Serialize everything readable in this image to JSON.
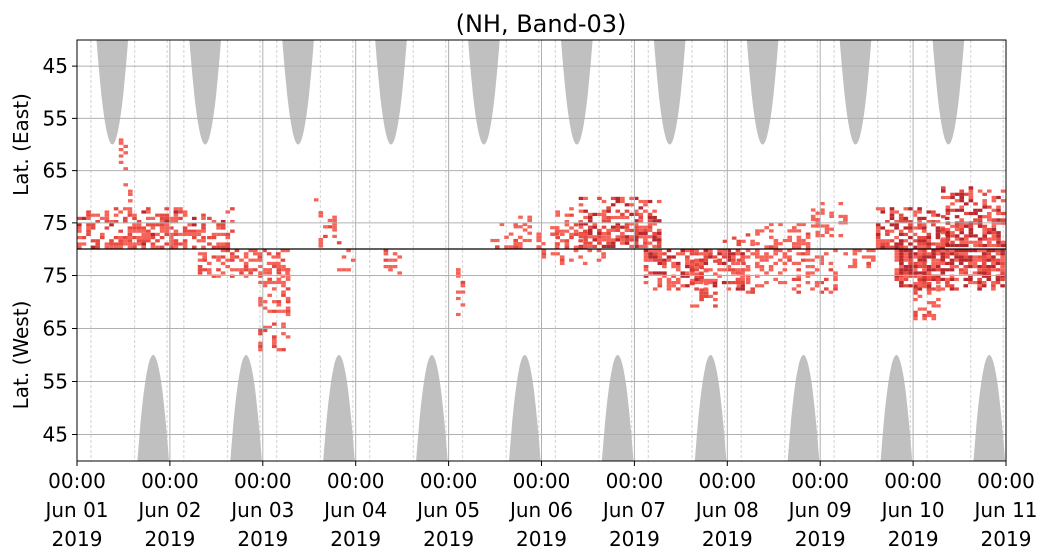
{
  "chart_data": {
    "type": "heatmap",
    "title": "(NH, Band-03)",
    "ylabel_top": "Lat. (East)",
    "ylabel_bottom": "Lat. (West)",
    "x_ticks": [
      {
        "line1": "00:00",
        "line2": "Jun 01",
        "line3": "2019"
      },
      {
        "line1": "00:00",
        "line2": "Jun 02",
        "line3": "2019"
      },
      {
        "line1": "00:00",
        "line2": "Jun 03",
        "line3": "2019"
      },
      {
        "line1": "00:00",
        "line2": "Jun 04",
        "line3": "2019"
      },
      {
        "line1": "00:00",
        "line2": "Jun 05",
        "line3": "2019"
      },
      {
        "line1": "00:00",
        "line2": "Jun 06",
        "line3": "2019"
      },
      {
        "line1": "00:00",
        "line2": "Jun 07",
        "line3": "2019"
      },
      {
        "line1": "00:00",
        "line2": "Jun 08",
        "line3": "2019"
      },
      {
        "line1": "00:00",
        "line2": "Jun 09",
        "line3": "2019"
      },
      {
        "line1": "00:00",
        "line2": "Jun 10",
        "line3": "2019"
      },
      {
        "line1": "00:00",
        "line2": "Jun 11",
        "line3": "2019"
      }
    ],
    "x_range": [
      "2019-06-01 00:00",
      "2019-06-11 00:00"
    ],
    "y_ticks_east": [
      {
        "label": "45",
        "lat": 45
      },
      {
        "label": "55",
        "lat": 55
      },
      {
        "label": "65",
        "lat": 65
      },
      {
        "label": "75",
        "lat": 75
      }
    ],
    "y_ticks_west": [
      {
        "label": "75",
        "lat": 75
      },
      {
        "label": "65",
        "lat": 65
      },
      {
        "label": "55",
        "lat": 55
      },
      {
        "label": "45",
        "lat": 45
      }
    ],
    "lat_range_east": [
      40,
      80
    ],
    "lat_range_west": [
      40,
      80
    ],
    "divider_lat": 80,
    "grid": true,
    "colors": {
      "night": "#c0c0c0",
      "activity_low": "#f4564b",
      "activity_mid": "#e43a30",
      "activity_high": "#b3161c",
      "grid": "#b0b0b0",
      "divider": "#000000"
    },
    "night_regions_east": [
      {
        "center_day": 0.38,
        "half_width_days": 0.17,
        "min_lat": 60
      },
      {
        "center_day": 1.38,
        "half_width_days": 0.17,
        "min_lat": 60
      },
      {
        "center_day": 2.38,
        "half_width_days": 0.17,
        "min_lat": 60
      },
      {
        "center_day": 3.38,
        "half_width_days": 0.17,
        "min_lat": 60
      },
      {
        "center_day": 4.38,
        "half_width_days": 0.17,
        "min_lat": 60
      },
      {
        "center_day": 5.38,
        "half_width_days": 0.17,
        "min_lat": 60
      },
      {
        "center_day": 6.38,
        "half_width_days": 0.17,
        "min_lat": 60
      },
      {
        "center_day": 7.38,
        "half_width_days": 0.17,
        "min_lat": 60
      },
      {
        "center_day": 8.38,
        "half_width_days": 0.17,
        "min_lat": 60
      },
      {
        "center_day": 9.38,
        "half_width_days": 0.17,
        "min_lat": 60
      }
    ],
    "night_regions_west": [
      {
        "center_day": 0.82,
        "half_width_days": 0.17,
        "min_lat": 60
      },
      {
        "center_day": 1.82,
        "half_width_days": 0.17,
        "min_lat": 60
      },
      {
        "center_day": 2.82,
        "half_width_days": 0.17,
        "min_lat": 60
      },
      {
        "center_day": 3.82,
        "half_width_days": 0.17,
        "min_lat": 60
      },
      {
        "center_day": 4.82,
        "half_width_days": 0.17,
        "min_lat": 60
      },
      {
        "center_day": 5.82,
        "half_width_days": 0.17,
        "min_lat": 60
      },
      {
        "center_day": 6.82,
        "half_width_days": 0.17,
        "min_lat": 60
      },
      {
        "center_day": 7.82,
        "half_width_days": 0.17,
        "min_lat": 60
      },
      {
        "center_day": 8.82,
        "half_width_days": 0.17,
        "min_lat": 60
      },
      {
        "center_day": 9.82,
        "half_width_days": 0.17,
        "min_lat": 60
      }
    ],
    "activity_clusters": [
      {
        "side": "east",
        "day_start": 0.0,
        "day_end": 1.4,
        "lat_min": 72,
        "lat_max": 80,
        "density": 0.55,
        "intensity": 1.0
      },
      {
        "side": "east",
        "day_start": 0.45,
        "day_end": 0.6,
        "lat_min": 57,
        "lat_max": 72,
        "density": 0.25,
        "intensity": 0.5
      },
      {
        "side": "east",
        "day_start": 1.4,
        "day_end": 1.7,
        "lat_min": 72,
        "lat_max": 80,
        "density": 0.55,
        "intensity": 1.0
      },
      {
        "side": "east",
        "day_start": 2.6,
        "day_end": 2.85,
        "lat_min": 73,
        "lat_max": 80,
        "density": 0.35,
        "intensity": 0.8
      },
      {
        "side": "east",
        "day_start": 2.55,
        "day_end": 2.65,
        "lat_min": 66,
        "lat_max": 74,
        "density": 0.2,
        "intensity": 0.5
      },
      {
        "side": "west",
        "day_start": 1.3,
        "day_end": 2.3,
        "lat_min": 74,
        "lat_max": 80,
        "density": 0.35,
        "intensity": 0.8
      },
      {
        "side": "west",
        "day_start": 1.95,
        "day_end": 2.3,
        "lat_min": 60,
        "lat_max": 77,
        "density": 0.4,
        "intensity": 0.9
      },
      {
        "side": "west",
        "day_start": 2.8,
        "day_end": 3.0,
        "lat_min": 75,
        "lat_max": 80,
        "density": 0.35,
        "intensity": 0.6
      },
      {
        "side": "west",
        "day_start": 3.3,
        "day_end": 3.5,
        "lat_min": 74,
        "lat_max": 80,
        "density": 0.35,
        "intensity": 0.6
      },
      {
        "side": "west",
        "day_start": 4.08,
        "day_end": 4.2,
        "lat_min": 67,
        "lat_max": 77,
        "density": 0.35,
        "intensity": 0.6
      },
      {
        "side": "east",
        "day_start": 4.45,
        "day_end": 5.2,
        "lat_min": 75,
        "lat_max": 80,
        "density": 0.25,
        "intensity": 0.6
      },
      {
        "side": "east",
        "day_start": 4.7,
        "day_end": 4.9,
        "lat_min": 73,
        "lat_max": 78,
        "density": 0.35,
        "intensity": 0.6
      },
      {
        "side": "east",
        "day_start": 5.4,
        "day_end": 6.3,
        "lat_min": 70,
        "lat_max": 80,
        "density": 0.6,
        "intensity": 1.3
      },
      {
        "side": "east",
        "day_start": 5.1,
        "day_end": 5.5,
        "lat_min": 72,
        "lat_max": 80,
        "density": 0.4,
        "intensity": 0.7
      },
      {
        "side": "west",
        "day_start": 5.0,
        "day_end": 5.7,
        "lat_min": 76,
        "lat_max": 80,
        "density": 0.3,
        "intensity": 0.7
      },
      {
        "side": "west",
        "day_start": 6.1,
        "day_end": 7.2,
        "lat_min": 72,
        "lat_max": 80,
        "density": 0.6,
        "intensity": 1.2
      },
      {
        "side": "west",
        "day_start": 6.6,
        "day_end": 6.9,
        "lat_min": 68,
        "lat_max": 78,
        "density": 0.45,
        "intensity": 1.0
      },
      {
        "side": "east",
        "day_start": 6.95,
        "day_end": 7.3,
        "lat_min": 77,
        "lat_max": 80,
        "density": 0.4,
        "intensity": 0.8
      },
      {
        "side": "east",
        "day_start": 7.3,
        "day_end": 7.9,
        "lat_min": 75,
        "lat_max": 80,
        "density": 0.4,
        "intensity": 0.6
      },
      {
        "side": "east",
        "day_start": 7.9,
        "day_end": 8.3,
        "lat_min": 71,
        "lat_max": 78,
        "density": 0.35,
        "intensity": 0.6
      },
      {
        "side": "west",
        "day_start": 7.1,
        "day_end": 8.2,
        "lat_min": 71,
        "lat_max": 80,
        "density": 0.35,
        "intensity": 0.7
      },
      {
        "side": "west",
        "day_start": 8.2,
        "day_end": 8.6,
        "lat_min": 76,
        "lat_max": 80,
        "density": 0.3,
        "intensity": 0.6
      },
      {
        "side": "east",
        "day_start": 8.6,
        "day_end": 9.4,
        "lat_min": 72,
        "lat_max": 80,
        "density": 0.7,
        "intensity": 1.4
      },
      {
        "side": "east",
        "day_start": 9.3,
        "day_end": 10.0,
        "lat_min": 68,
        "lat_max": 80,
        "density": 0.7,
        "intensity": 1.6
      },
      {
        "side": "west",
        "day_start": 8.8,
        "day_end": 10.0,
        "lat_min": 72,
        "lat_max": 80,
        "density": 0.8,
        "intensity": 1.8
      },
      {
        "side": "west",
        "day_start": 9.0,
        "day_end": 9.3,
        "lat_min": 66,
        "lat_max": 75,
        "density": 0.3,
        "intensity": 0.7
      }
    ]
  }
}
